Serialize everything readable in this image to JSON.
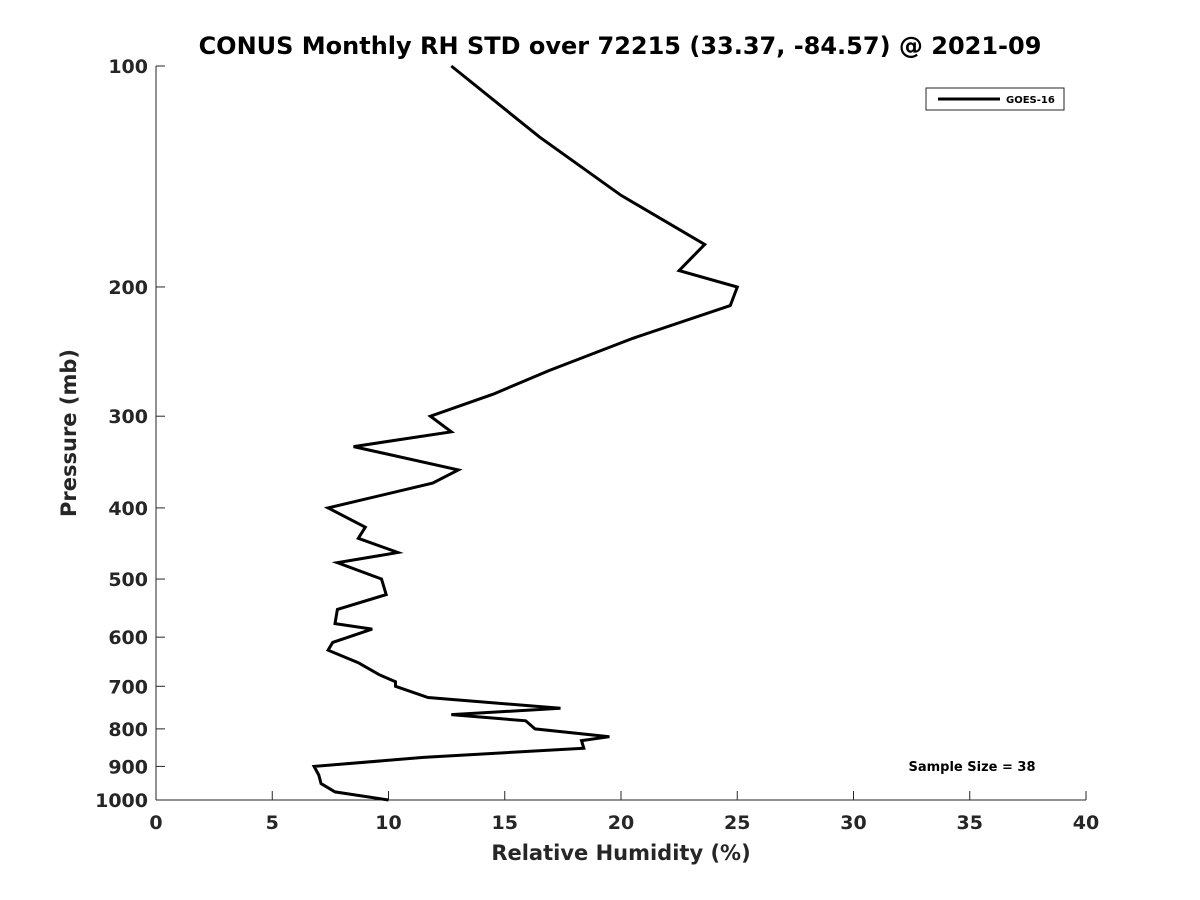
{
  "chart_data": {
    "type": "line",
    "title": "CONUS Monthly RH STD over 72215 (33.37, -84.57) @ 2021-09",
    "xlabel": "Relative Humidity (%)",
    "ylabel": "Pressure (mb)",
    "xlim": [
      0,
      40
    ],
    "ylim": [
      100,
      1000
    ],
    "yscale": "log",
    "y_inverted": true,
    "xticks": [
      0,
      5,
      10,
      15,
      20,
      25,
      30,
      35,
      40
    ],
    "yticks": [
      100,
      200,
      300,
      400,
      500,
      600,
      700,
      800,
      900,
      1000
    ],
    "grid": false,
    "legend": {
      "placement": "top-right",
      "entries": [
        "GOES-16"
      ]
    },
    "annotation": "Sample Size = 38",
    "series": [
      {
        "name": "GOES-16",
        "color": "#000000",
        "points": [
          [
            12.7,
            100
          ],
          [
            16.5,
            125
          ],
          [
            20.0,
            150
          ],
          [
            23.6,
            175
          ],
          [
            22.5,
            190
          ],
          [
            25.0,
            200
          ],
          [
            24.7,
            212
          ],
          [
            20.5,
            235
          ],
          [
            16.9,
            260
          ],
          [
            14.5,
            280
          ],
          [
            11.8,
            300
          ],
          [
            12.7,
            315
          ],
          [
            8.5,
            330
          ],
          [
            13.0,
            355
          ],
          [
            11.9,
            370
          ],
          [
            7.4,
            400
          ],
          [
            9.0,
            425
          ],
          [
            8.7,
            440
          ],
          [
            10.4,
            460
          ],
          [
            7.8,
            475
          ],
          [
            9.7,
            500
          ],
          [
            9.9,
            525
          ],
          [
            7.8,
            550
          ],
          [
            7.7,
            575
          ],
          [
            9.3,
            585
          ],
          [
            7.6,
            610
          ],
          [
            7.4,
            625
          ],
          [
            8.7,
            650
          ],
          [
            9.6,
            675
          ],
          [
            10.3,
            690
          ],
          [
            10.3,
            700
          ],
          [
            11.7,
            725
          ],
          [
            17.4,
            750
          ],
          [
            12.7,
            765
          ],
          [
            15.9,
            780
          ],
          [
            16.3,
            800
          ],
          [
            19.5,
            820
          ],
          [
            18.3,
            830
          ],
          [
            18.4,
            850
          ],
          [
            11.5,
            875
          ],
          [
            6.8,
            900
          ],
          [
            7.0,
            925
          ],
          [
            7.1,
            950
          ],
          [
            7.7,
            975
          ],
          [
            10.0,
            1000
          ]
        ]
      }
    ]
  }
}
